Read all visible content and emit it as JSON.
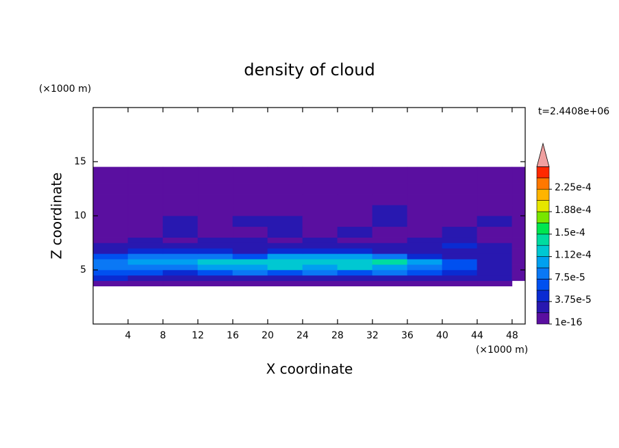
{
  "chart_data": {
    "type": "contour",
    "title": "density of cloud",
    "x_label": "X coordinate",
    "y_label": "Z coordinate",
    "x_unit": "(×1000 m)",
    "y_unit": "(×1000 m)",
    "time_label": "t=2.4408e+06",
    "xlim": [
      0,
      49.5
    ],
    "ylim": [
      0,
      20
    ],
    "xticks": [
      4,
      8,
      12,
      16,
      20,
      24,
      28,
      32,
      36,
      40,
      44,
      48
    ],
    "yticks": [
      5,
      10,
      15
    ],
    "x_edges": [
      0,
      4,
      8,
      12,
      16,
      20,
      24,
      28,
      32,
      36,
      40,
      44,
      48,
      49.5
    ],
    "z_edges": [
      3.5,
      4,
      4.5,
      5,
      5.5,
      6,
      6.5,
      7,
      7.5,
      8,
      9,
      10,
      11,
      12,
      13,
      14.5
    ],
    "values": [
      [
        5e-06,
        5e-06,
        5e-06,
        5e-06,
        5e-06,
        5e-06,
        5e-06,
        5e-06,
        5e-06,
        5e-06,
        5e-06,
        5e-06,
        null
      ],
      [
        4e-05,
        3e-05,
        2e-05,
        2e-05,
        3e-05,
        3e-05,
        3e-05,
        2e-05,
        3e-05,
        2e-05,
        2e-05,
        2e-05,
        5e-06
      ],
      [
        6e-05,
        6e-05,
        5e-05,
        6e-05,
        8e-05,
        7e-05,
        8e-05,
        6e-05,
        8e-05,
        6e-05,
        5e-05,
        3e-05,
        5e-06
      ],
      [
        8e-05,
        8e-05,
        9e-05,
        0.00011,
        0.00011,
        0.00012,
        0.00011,
        0.00012,
        0.00011,
        8e-05,
        6e-05,
        3e-05,
        5e-06
      ],
      [
        8e-05,
        0.0001,
        0.0001,
        0.00013,
        0.00012,
        0.00012,
        0.00012,
        0.00013,
        0.00014,
        0.0001,
        7e-05,
        3e-05,
        5e-06
      ],
      [
        6e-05,
        9e-05,
        9e-05,
        8e-05,
        6e-05,
        0.0001,
        0.00011,
        0.0001,
        8e-05,
        5e-05,
        3e-05,
        2e-05,
        5e-06
      ],
      [
        3e-05,
        4e-05,
        5e-05,
        4e-05,
        3e-05,
        4e-05,
        5e-05,
        4e-05,
        3e-05,
        2e-05,
        2e-05,
        2e-05,
        5e-06
      ],
      [
        2e-05,
        2e-05,
        2e-05,
        2e-05,
        2e-05,
        2e-05,
        2e-05,
        2e-05,
        2e-05,
        2e-05,
        4e-05,
        2e-05,
        5e-06
      ],
      [
        5e-06,
        2e-05,
        5e-06,
        2e-05,
        2e-05,
        5e-06,
        2e-05,
        5e-06,
        5e-06,
        2e-05,
        2e-05,
        5e-06,
        5e-06
      ],
      [
        5e-06,
        5e-06,
        2e-05,
        5e-06,
        5e-06,
        2e-05,
        5e-06,
        2e-05,
        5e-06,
        5e-06,
        2e-05,
        5e-06,
        5e-06
      ],
      [
        5e-06,
        5e-06,
        2e-05,
        5e-06,
        2e-05,
        2e-05,
        5e-06,
        5e-06,
        2e-05,
        5e-06,
        5e-06,
        2e-05,
        5e-06
      ],
      [
        5e-06,
        5e-06,
        5e-06,
        5e-06,
        5e-06,
        5e-06,
        5e-06,
        5e-06,
        2e-05,
        5e-06,
        5e-06,
        5e-06,
        5e-06
      ],
      [
        5e-06,
        5e-06,
        5e-06,
        5e-06,
        5e-06,
        5e-06,
        5e-06,
        5e-06,
        5e-06,
        5e-06,
        5e-06,
        5e-06,
        5e-06
      ],
      [
        5e-06,
        5e-06,
        5e-06,
        5e-06,
        5e-06,
        5e-06,
        5e-06,
        5e-06,
        5e-06,
        5e-06,
        5e-06,
        5e-06,
        5e-06
      ],
      [
        5e-06,
        5e-06,
        5e-06,
        5e-06,
        5e-06,
        5e-06,
        5e-06,
        5e-06,
        5e-06,
        5e-06,
        5e-06,
        5e-06,
        5e-06
      ]
    ],
    "levels": [
      1e-16,
      1.875e-05,
      3.75e-05,
      5.625e-05,
      7.5e-05,
      9.375e-05,
      0.0001125,
      0.00013125,
      0.00015,
      0.00016875,
      0.0001875,
      0.00020625,
      0.000225,
      0.00024375
    ],
    "colors": [
      "#5a0fa0",
      "#2818b0",
      "#0a2bd2",
      "#0050f0",
      "#0a78f5",
      "#00a0f0",
      "#00c8d2",
      "#00dca0",
      "#00e650",
      "#78e600",
      "#e6e600",
      "#ffb400",
      "#ff7800",
      "#ff2800"
    ],
    "over_color": "#f0a0a0",
    "colorbar_ticks": [
      {
        "value": 1e-16,
        "label": "1e-16"
      },
      {
        "value": 3.75e-05,
        "label": "3.75e-5"
      },
      {
        "value": 7.5e-05,
        "label": "7.5e-5"
      },
      {
        "value": 0.0001125,
        "label": "1.12e-4"
      },
      {
        "value": 0.00015,
        "label": "1.5e-4"
      },
      {
        "value": 0.0001875,
        "label": "1.88e-4"
      },
      {
        "value": 0.000225,
        "label": "2.25e-4"
      }
    ]
  }
}
